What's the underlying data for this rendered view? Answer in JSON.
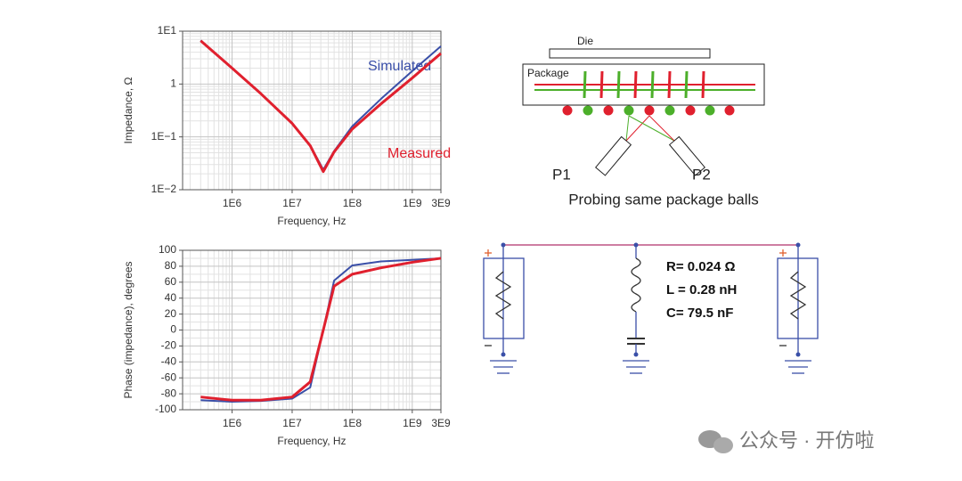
{
  "chart_data": [
    {
      "type": "line",
      "x_label": "Frequency, Hz",
      "y_label": "Impedance, Ω",
      "log_x": true,
      "log_y": true,
      "grid": true,
      "xlim": [
        150000,
        3000000000
      ],
      "xticks": [
        {
          "value": 1000000,
          "label": "1E6"
        },
        {
          "value": 10000000,
          "label": "1E7"
        },
        {
          "value": 100000000,
          "label": "1E8"
        },
        {
          "value": 1000000000,
          "label": "1E9"
        },
        {
          "value": 3000000000,
          "label": "3E9"
        }
      ],
      "ylim": [
        0.01,
        10
      ],
      "yticks": [
        {
          "value": 10,
          "label": "1E1"
        },
        1,
        {
          "value": 0.1,
          "label": "1E−1"
        },
        {
          "value": 0.01,
          "label": "1E−2"
        }
      ],
      "x": [
        300000,
        1000000,
        3000000,
        10000000,
        20000000,
        33000000,
        50000000,
        100000000,
        300000000,
        1000000000,
        3000000000
      ],
      "series": [
        {
          "name": "Simulated",
          "color": "#3a4fa8",
          "values": [
            6.67,
            2.0,
            0.66,
            0.18,
            0.069,
            0.024,
            0.054,
            0.158,
            0.52,
            1.76,
            5.2
          ]
        },
        {
          "name": "Measured",
          "color": "#e0202e",
          "values": [
            6.6,
            2.0,
            0.66,
            0.18,
            0.068,
            0.022,
            0.052,
            0.14,
            0.42,
            1.3,
            3.8
          ]
        }
      ]
    },
    {
      "type": "line",
      "x_label": "Frequency, Hz",
      "y_label": "Phase (impedance), degrees",
      "log_x": true,
      "log_y": false,
      "grid": true,
      "xlim": [
        150000,
        3000000000
      ],
      "xticks": [
        {
          "value": 1000000,
          "label": "1E6"
        },
        {
          "value": 10000000,
          "label": "1E7"
        },
        {
          "value": 100000000,
          "label": "1E8"
        },
        {
          "value": 1000000000,
          "label": "1E9"
        },
        {
          "value": 3000000000,
          "label": "3E9"
        }
      ],
      "ylim": [
        -100,
        100
      ],
      "yticks": [
        -100,
        -80,
        -60,
        -40,
        -20,
        0,
        20,
        40,
        60,
        80,
        100
      ],
      "x": [
        300000,
        1000000,
        3000000,
        10000000,
        20000000,
        33000000,
        50000000,
        100000000,
        300000000,
        1000000000,
        3000000000
      ],
      "series": [
        {
          "color": "#3a4fa8",
          "values": [
            -88,
            -90,
            -89,
            -86,
            -72,
            0,
            62,
            81,
            86,
            88,
            90
          ]
        },
        {
          "color": "#e0202e",
          "values": [
            -84,
            -88,
            -88,
            -84,
            -65,
            0,
            55,
            70,
            78,
            85,
            90
          ]
        }
      ]
    }
  ],
  "diagram": {
    "die": "Die",
    "package": "Package",
    "probe1": "P1",
    "probe2": "P2",
    "caption": "Probing same package balls",
    "r": "R= 0.024 Ω",
    "l": "L = 0.28 nH",
    "c": "C= 79.5 nF"
  },
  "watermark": "公众号 · 开仿啦"
}
